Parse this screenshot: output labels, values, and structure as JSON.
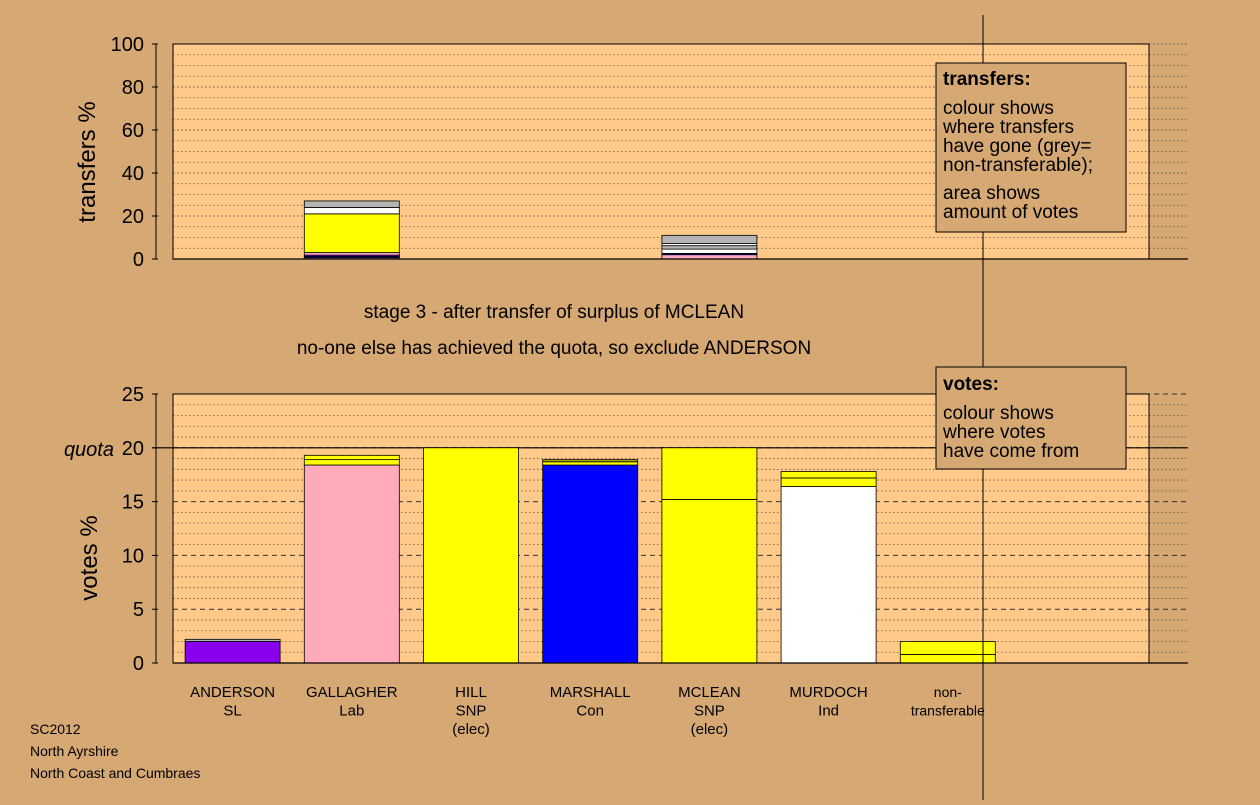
{
  "chart_data": [
    {
      "id": "transfers",
      "type": "bar",
      "stacked": true,
      "ylabel": "transfers %",
      "ylim": [
        0,
        100
      ],
      "yticks": [
        0,
        20,
        40,
        60,
        80,
        100
      ],
      "grid": "dotted",
      "categories": [
        "ANDERSON",
        "GALLAGHER",
        "HILL",
        "MARSHALL",
        "MCLEAN",
        "MURDOCH",
        "non-transferable"
      ],
      "bars": [
        {
          "category": "GALLAGHER",
          "segments": [
            {
              "value": 0.6,
              "color": "#ffaabb"
            },
            {
              "value": 0.6,
              "color": "#0000ff"
            },
            {
              "value": 0.6,
              "color": "#8800ee"
            },
            {
              "value": 1.2,
              "color": "#ffaabb"
            },
            {
              "value": 18.0,
              "color": "#ffff00"
            },
            {
              "value": 3.0,
              "color": "#ffffff"
            },
            {
              "value": 3.0,
              "color": "#b4b4b4"
            }
          ]
        },
        {
          "category": "MCLEAN",
          "segments": [
            {
              "value": 2.0,
              "color": "#ffaabb"
            },
            {
              "value": 0.6,
              "color": "#0000ff"
            },
            {
              "value": 2.0,
              "color": "#ffffff"
            },
            {
              "value": 1.6,
              "color": "#b4b4b4"
            },
            {
              "value": 1.0,
              "color": "#ffffff"
            },
            {
              "value": 3.8,
              "color": "#b4b4b4"
            }
          ]
        }
      ],
      "legend_title": "transfers:",
      "legend_lines": [
        "colour shows",
        "where transfers",
        "have gone (grey=",
        "non-transferable);",
        "area shows",
        "amount of votes"
      ]
    },
    {
      "id": "votes",
      "type": "bar",
      "stacked": true,
      "ylabel": "votes %",
      "ylim": [
        0,
        25
      ],
      "yticks": [
        0,
        5,
        10,
        15,
        20,
        25
      ],
      "grid": "dashed",
      "quota": 20,
      "quota_label": "quota",
      "categories": [
        "ANDERSON",
        "GALLAGHER",
        "HILL",
        "MARSHALL",
        "MCLEAN",
        "MURDOCH",
        "non-transferable"
      ],
      "bars": [
        {
          "category": "ANDERSON",
          "segments": [
            {
              "value": 2.0,
              "color": "#8800ee"
            },
            {
              "value": 0.2,
              "color": "#b4b4b4"
            }
          ]
        },
        {
          "category": "GALLAGHER",
          "segments": [
            {
              "value": 18.4,
              "color": "#ffaabb"
            },
            {
              "value": 0.5,
              "color": "#ffff00"
            },
            {
              "value": 0.4,
              "color": "#ffff00"
            }
          ]
        },
        {
          "category": "HILL",
          "segments": [
            {
              "value": 20.0,
              "color": "#ffff00"
            }
          ]
        },
        {
          "category": "MARSHALL",
          "segments": [
            {
              "value": 18.4,
              "color": "#0000ff"
            },
            {
              "value": 0.3,
              "color": "#ffff00"
            },
            {
              "value": 0.2,
              "color": "#aaaa00"
            }
          ]
        },
        {
          "category": "MCLEAN",
          "segments": [
            {
              "value": 15.2,
              "color": "#ffff00"
            },
            {
              "value": 4.8,
              "color": "#ffff00"
            }
          ]
        },
        {
          "category": "MURDOCH",
          "segments": [
            {
              "value": 16.4,
              "color": "#ffffff"
            },
            {
              "value": 0.8,
              "color": "#ffff00"
            },
            {
              "value": 0.6,
              "color": "#ffff00"
            }
          ]
        },
        {
          "category": "non-transferable",
          "segments": [
            {
              "value": 0.8,
              "color": "#ffff00"
            },
            {
              "value": 1.2,
              "color": "#ffff00"
            }
          ]
        }
      ],
      "legend_title": "votes:",
      "legend_lines": [
        "colour shows",
        "where votes",
        "have come from"
      ]
    }
  ],
  "candidates": [
    {
      "lines": [
        "ANDERSON",
        "SL"
      ]
    },
    {
      "lines": [
        "GALLAGHER",
        "Lab"
      ]
    },
    {
      "lines": [
        "HILL",
        "SNP",
        "(elec)"
      ]
    },
    {
      "lines": [
        "MARSHALL",
        "Con"
      ]
    },
    {
      "lines": [
        "MCLEAN",
        "SNP",
        "(elec)"
      ]
    },
    {
      "lines": [
        "MURDOCH",
        "Ind"
      ]
    },
    {
      "lines": [
        "non-",
        "transferable"
      ]
    }
  ],
  "stage": {
    "line1": "stage 3 - after transfer of surplus of MCLEAN",
    "line2": "no-one else has achieved the quota, so exclude ANDERSON"
  },
  "footer": {
    "line1": "SC2012",
    "line2": "North Ayrshire",
    "line3": "North Coast and Cumbraes"
  },
  "colors": {
    "background": "#d5a874",
    "plot": "#ffc98a",
    "legend": "#d5a874"
  }
}
